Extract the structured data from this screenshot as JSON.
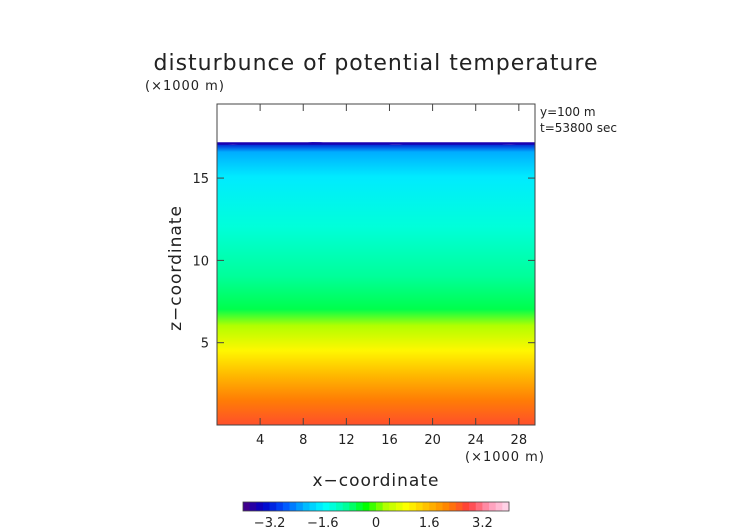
{
  "chart_data": {
    "type": "heatmap",
    "title": "disturbunce of potential temperature",
    "unit_note": "(×1000 m)",
    "xlabel": "x−coordinate",
    "ylabel": "z−coordinate",
    "x_unit": "(×1000 m)",
    "xlim": [
      0,
      29.5
    ],
    "ylim": [
      0,
      19.5
    ],
    "x_ticks": [
      "4",
      "8",
      "12",
      "16",
      "20",
      "24",
      "28"
    ],
    "x_tick_values": [
      4,
      8,
      12,
      16,
      20,
      24,
      28
    ],
    "y_ticks": [
      "5",
      "10",
      "15"
    ],
    "y_tick_values": [
      5,
      10,
      15
    ],
    "annotations": [
      "y=100 m",
      "t=53800 sec"
    ],
    "data_top_height": 17.1,
    "colorbar": {
      "range": [
        -4,
        4
      ],
      "tick_labels": [
        "−3.2",
        "−1.6",
        "0",
        "1.6",
        "3.2"
      ],
      "tick_values": [
        -3.2,
        -1.6,
        0,
        1.6,
        3.2
      ],
      "colors": [
        "#4b0082",
        "#0000c8",
        "#0050ff",
        "#00b4ff",
        "#00ffff",
        "#00ffa0",
        "#00ff00",
        "#b4ff00",
        "#ffff00",
        "#ffbe00",
        "#ff8200",
        "#ff3c3c",
        "#ff96b4",
        "#ffdcf0"
      ]
    },
    "profile": [
      {
        "z": 0.0,
        "value": 2.6
      },
      {
        "z": 1.5,
        "value": 2.2
      },
      {
        "z": 3.0,
        "value": 1.6
      },
      {
        "z": 4.5,
        "value": 1.0
      },
      {
        "z": 6.0,
        "value": 0.3
      },
      {
        "z": 7.0,
        "value": -0.6
      },
      {
        "z": 9.0,
        "value": -0.9
      },
      {
        "z": 12.0,
        "value": -1.3
      },
      {
        "z": 15.0,
        "value": -1.7
      },
      {
        "z": 16.5,
        "value": -2.2
      },
      {
        "z": 17.1,
        "value": -3.4
      }
    ]
  }
}
